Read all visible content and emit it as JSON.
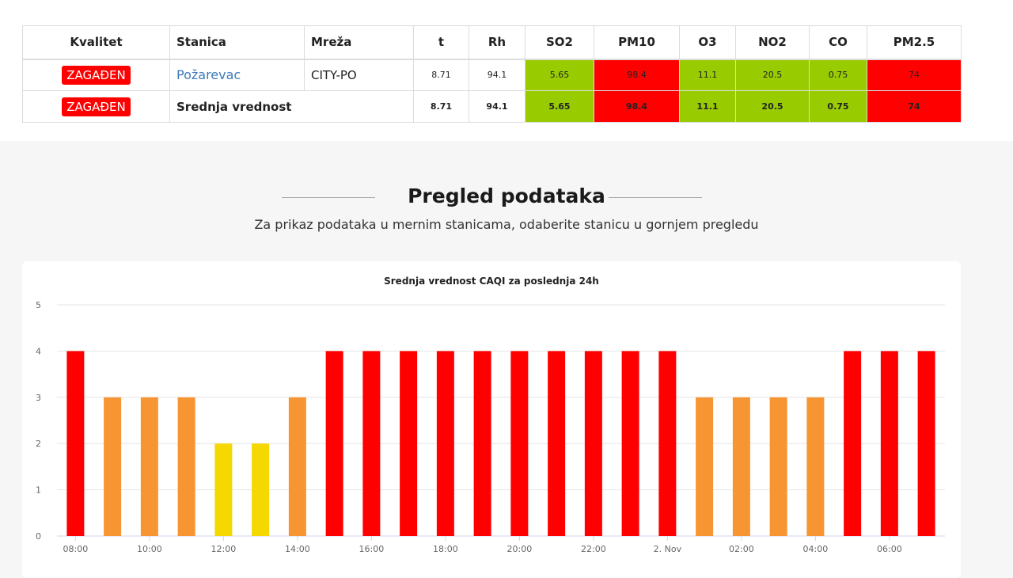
{
  "table": {
    "headers": [
      "Kvalitet",
      "Stanica",
      "Mreža",
      "t",
      "Rh",
      "SO2",
      "PM10",
      "O3",
      "NO2",
      "CO",
      "PM2.5"
    ],
    "row1": {
      "quality": "ZAGAĐEN",
      "station": "Požarevac",
      "network": "CITY-PO",
      "t": "8.71",
      "rh": "94.1",
      "so2": "5.65",
      "pm10": "98.4",
      "o3": "11.1",
      "no2": "20.5",
      "co": "0.75",
      "pm25": "74"
    },
    "row2": {
      "quality": "ZAGAĐEN",
      "label": "Srednja vrednost",
      "t": "8.71",
      "rh": "94.1",
      "so2": "5.65",
      "pm10": "98.4",
      "o3": "11.1",
      "no2": "20.5",
      "co": "0.75",
      "pm25": "74"
    },
    "colors": {
      "good": "#99cc00",
      "bad": "#ff0000"
    }
  },
  "section": {
    "title": "Pregled podataka",
    "subtitle": "Za prikaz podataka u mernim stanicama, odaberite stanicu u gornjem pregledu"
  },
  "chart_data": {
    "type": "bar",
    "title": "Srednja vrednost CAQI za poslednja 24h",
    "xlabel": "",
    "ylabel": "",
    "ylim": [
      0,
      5
    ],
    "yticks": [
      0,
      1,
      2,
      3,
      4,
      5
    ],
    "categories": [
      "08:00",
      "09:00",
      "10:00",
      "11:00",
      "12:00",
      "13:00",
      "14:00",
      "15:00",
      "16:00",
      "17:00",
      "18:00",
      "19:00",
      "20:00",
      "21:00",
      "22:00",
      "23:00",
      "2. Nov",
      "01:00",
      "02:00",
      "03:00",
      "04:00",
      "05:00",
      "06:00",
      "07:00"
    ],
    "xtick_labels": [
      "08:00",
      "10:00",
      "12:00",
      "14:00",
      "16:00",
      "18:00",
      "20:00",
      "22:00",
      "2. Nov",
      "02:00",
      "04:00",
      "06:00"
    ],
    "values": [
      4,
      3,
      3,
      3,
      2,
      2,
      3,
      4,
      4,
      4,
      4,
      4,
      4,
      4,
      4,
      4,
      4,
      3,
      3,
      3,
      3,
      4,
      4,
      4
    ],
    "grid": true,
    "colors": {
      "4": "#ff0000",
      "3": "#f79533",
      "2": "#f5d800"
    }
  }
}
